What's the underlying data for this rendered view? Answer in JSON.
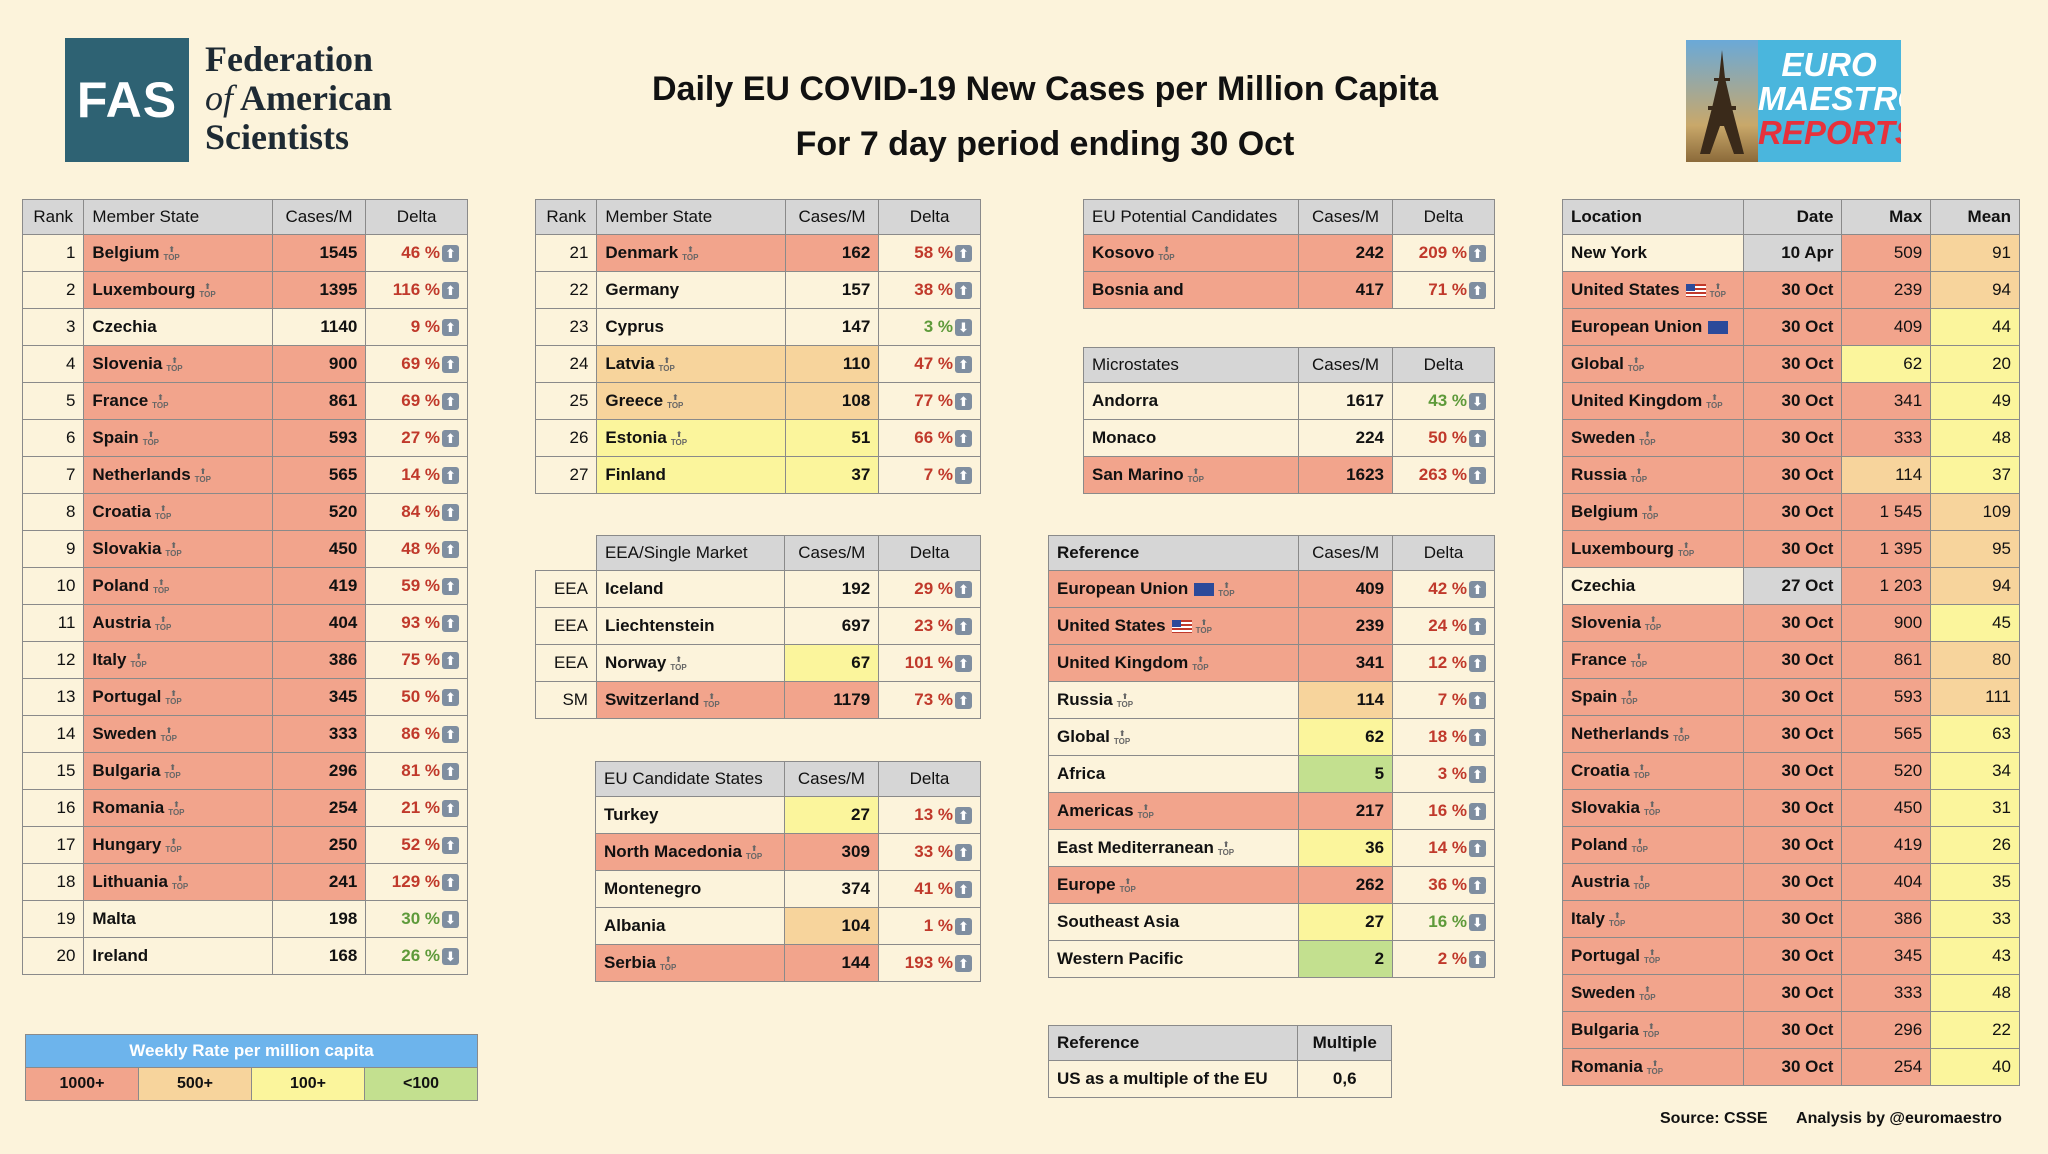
{
  "colors": {
    "c1000": "#f2a48c",
    "c500": "#f7d49c",
    "c100": "#fbf59c",
    "c0": "#c3e08f",
    "plain": "#fcf3db",
    "gray": "#d6d6d6"
  },
  "header": {
    "fas_abbr": "FAS",
    "fas_line1": "Federation",
    "fas_line2_of": "of",
    "fas_line2": "American",
    "fas_line3": "Scientists",
    "title1": "Daily EU COVID-19 New Cases per Million Capita",
    "title2": "For 7 day period ending 30 Oct",
    "euro_line1": "EURO",
    "euro_line2": "MAESTRO",
    "euro_line3": "REPORTS"
  },
  "chart_data": {
    "type": "table",
    "title": "Daily EU COVID-19 New Cases per Million Capita",
    "subtitle": "For 7 day period ending 30 Oct",
    "member_states": {
      "headers": [
        "Rank",
        "Member State",
        "Cases/M",
        "Delta"
      ],
      "rows_a": [
        {
          "rank": "1",
          "name": "Belgium",
          "cases": "1545",
          "delta": "46 %",
          "dir": "up",
          "top": true,
          "band": "c1000"
        },
        {
          "rank": "2",
          "name": "Luxembourg",
          "cases": "1395",
          "delta": "116 %",
          "dir": "up",
          "top": true,
          "band": "c1000"
        },
        {
          "rank": "3",
          "name": "Czechia",
          "cases": "1140",
          "delta": "9 %",
          "dir": "up",
          "top": false,
          "band": "plain"
        },
        {
          "rank": "4",
          "name": "Slovenia",
          "cases": "900",
          "delta": "69 %",
          "dir": "up",
          "top": true,
          "band": "c1000"
        },
        {
          "rank": "5",
          "name": "France",
          "cases": "861",
          "delta": "69 %",
          "dir": "up",
          "top": true,
          "band": "c1000"
        },
        {
          "rank": "6",
          "name": "Spain",
          "cases": "593",
          "delta": "27 %",
          "dir": "up",
          "top": true,
          "band": "c1000"
        },
        {
          "rank": "7",
          "name": "Netherlands",
          "cases": "565",
          "delta": "14 %",
          "dir": "up",
          "top": true,
          "band": "c1000"
        },
        {
          "rank": "8",
          "name": "Croatia",
          "cases": "520",
          "delta": "84 %",
          "dir": "up",
          "top": true,
          "band": "c1000"
        },
        {
          "rank": "9",
          "name": "Slovakia",
          "cases": "450",
          "delta": "48 %",
          "dir": "up",
          "top": true,
          "band": "c1000"
        },
        {
          "rank": "10",
          "name": "Poland",
          "cases": "419",
          "delta": "59 %",
          "dir": "up",
          "top": true,
          "band": "c1000"
        },
        {
          "rank": "11",
          "name": "Austria",
          "cases": "404",
          "delta": "93 %",
          "dir": "up",
          "top": true,
          "band": "c1000"
        },
        {
          "rank": "12",
          "name": "Italy",
          "cases": "386",
          "delta": "75 %",
          "dir": "up",
          "top": true,
          "band": "c1000"
        },
        {
          "rank": "13",
          "name": "Portugal",
          "cases": "345",
          "delta": "50 %",
          "dir": "up",
          "top": true,
          "band": "c1000"
        },
        {
          "rank": "14",
          "name": "Sweden",
          "cases": "333",
          "delta": "86 %",
          "dir": "up",
          "top": true,
          "band": "c1000"
        },
        {
          "rank": "15",
          "name": "Bulgaria",
          "cases": "296",
          "delta": "81 %",
          "dir": "up",
          "top": true,
          "band": "c1000"
        },
        {
          "rank": "16",
          "name": "Romania",
          "cases": "254",
          "delta": "21 %",
          "dir": "up",
          "top": true,
          "band": "c1000"
        },
        {
          "rank": "17",
          "name": "Hungary",
          "cases": "250",
          "delta": "52 %",
          "dir": "up",
          "top": true,
          "band": "c1000"
        },
        {
          "rank": "18",
          "name": "Lithuania",
          "cases": "241",
          "delta": "129 %",
          "dir": "up",
          "top": true,
          "band": "c1000"
        },
        {
          "rank": "19",
          "name": "Malta",
          "cases": "198",
          "delta": "30 %",
          "dir": "down",
          "top": false,
          "band": "plain"
        },
        {
          "rank": "20",
          "name": "Ireland",
          "cases": "168",
          "delta": "26 %",
          "dir": "down",
          "top": false,
          "band": "plain"
        }
      ],
      "rows_b": [
        {
          "rank": "21",
          "name": "Denmark",
          "cases": "162",
          "delta": "58 %",
          "dir": "up",
          "top": true,
          "band": "c1000"
        },
        {
          "rank": "22",
          "name": "Germany",
          "cases": "157",
          "delta": "38 %",
          "dir": "up",
          "top": false,
          "band": "plain"
        },
        {
          "rank": "23",
          "name": "Cyprus",
          "cases": "147",
          "delta": "3 %",
          "dir": "down",
          "top": false,
          "band": "plain"
        },
        {
          "rank": "24",
          "name": "Latvia",
          "cases": "110",
          "delta": "47 %",
          "dir": "up",
          "top": true,
          "band": "c500"
        },
        {
          "rank": "25",
          "name": "Greece",
          "cases": "108",
          "delta": "77 %",
          "dir": "up",
          "top": true,
          "band": "c500"
        },
        {
          "rank": "26",
          "name": "Estonia",
          "cases": "51",
          "delta": "66 %",
          "dir": "up",
          "top": true,
          "band": "c100"
        },
        {
          "rank": "27",
          "name": "Finland",
          "cases": "37",
          "delta": "7 %",
          "dir": "up",
          "top": false,
          "band": "c100"
        }
      ]
    },
    "eea": {
      "headers": [
        "EEA/Single Market",
        "Cases/M",
        "Delta"
      ],
      "rows": [
        {
          "tag": "EEA",
          "name": "Iceland",
          "cases": "192",
          "delta": "29 %",
          "dir": "up",
          "top": false,
          "band": "plain"
        },
        {
          "tag": "EEA",
          "name": "Liechtenstein",
          "cases": "697",
          "delta": "23 %",
          "dir": "up",
          "top": false,
          "band": "plain"
        },
        {
          "tag": "EEA",
          "name": "Norway",
          "cases": "67",
          "delta": "101 %",
          "dir": "up",
          "top": true,
          "band": "c100"
        },
        {
          "tag": "SM",
          "name": "Switzerland",
          "cases": "1179",
          "delta": "73 %",
          "dir": "up",
          "top": true,
          "band": "c1000"
        }
      ]
    },
    "candidates": {
      "headers": [
        "EU Candidate States",
        "Cases/M",
        "Delta"
      ],
      "rows": [
        {
          "name": "Turkey",
          "cases": "27",
          "delta": "13 %",
          "dir": "up",
          "top": false,
          "band": "c100"
        },
        {
          "name": "North Macedonia",
          "cases": "309",
          "delta": "33 %",
          "dir": "up",
          "top": true,
          "band": "c1000"
        },
        {
          "name": "Montenegro",
          "cases": "374",
          "delta": "41 %",
          "dir": "up",
          "top": false,
          "band": "plain"
        },
        {
          "name": "Albania",
          "cases": "104",
          "delta": "1 %",
          "dir": "up",
          "top": false,
          "band": "c500"
        },
        {
          "name": "Serbia",
          "cases": "144",
          "delta": "193 %",
          "dir": "up",
          "top": true,
          "band": "c1000"
        }
      ]
    },
    "potential": {
      "headers": [
        "EU Potential Candidates",
        "Cases/M",
        "Delta"
      ],
      "rows": [
        {
          "name": "Kosovo",
          "cases": "242",
          "delta": "209 %",
          "dir": "up",
          "top": true,
          "band": "c1000"
        },
        {
          "name": "Bosnia and",
          "cases": "417",
          "delta": "71 %",
          "dir": "up",
          "top": false,
          "band": "c1000"
        }
      ]
    },
    "microstates": {
      "headers": [
        "Microstates",
        "Cases/M",
        "Delta"
      ],
      "rows": [
        {
          "name": "Andorra",
          "cases": "1617",
          "delta": "43 %",
          "dir": "down",
          "top": false,
          "band": "plain"
        },
        {
          "name": "Monaco",
          "cases": "224",
          "delta": "50 %",
          "dir": "up",
          "top": false,
          "band": "plain"
        },
        {
          "name": "San Marino",
          "cases": "1623",
          "delta": "263 %",
          "dir": "up",
          "top": true,
          "band": "c1000"
        }
      ]
    },
    "reference": {
      "headers": [
        "Reference",
        "Cases/M",
        "Delta"
      ],
      "rows": [
        {
          "name": "European Union",
          "flag": "eu",
          "cases": "409",
          "delta": "42 %",
          "dir": "up",
          "top": true,
          "band": "c1000"
        },
        {
          "name": "United States",
          "flag": "us",
          "cases": "239",
          "delta": "24 %",
          "dir": "up",
          "top": true,
          "band": "c1000"
        },
        {
          "name": "United Kingdom",
          "cases": "341",
          "delta": "12 %",
          "dir": "up",
          "top": true,
          "band": "c1000"
        },
        {
          "name": "Russia",
          "cases": "114",
          "delta": "7 %",
          "dir": "up",
          "top": true,
          "band": "c500"
        },
        {
          "name": "Global",
          "cases": "62",
          "delta": "18 %",
          "dir": "up",
          "top": true,
          "band": "c100"
        },
        {
          "name": "Africa",
          "cases": "5",
          "delta": "3 %",
          "dir": "up",
          "top": false,
          "band": "c0"
        },
        {
          "name": "Americas",
          "cases": "217",
          "delta": "16 %",
          "dir": "up",
          "top": true,
          "band": "c1000"
        },
        {
          "name": "East Mediterranean",
          "cases": "36",
          "delta": "14 %",
          "dir": "up",
          "top": true,
          "band": "c100"
        },
        {
          "name": "Europe",
          "cases": "262",
          "delta": "36 %",
          "dir": "up",
          "top": true,
          "band": "c1000"
        },
        {
          "name": "Southeast Asia",
          "cases": "27",
          "delta": "16 %",
          "dir": "down",
          "top": false,
          "band": "c100"
        },
        {
          "name": "Western Pacific",
          "cases": "2",
          "delta": "2 %",
          "dir": "up",
          "top": false,
          "band": "c0"
        }
      ]
    },
    "multiple": {
      "headers": [
        "Reference",
        "Multiple"
      ],
      "rows": [
        {
          "name": "US as a multiple of the EU",
          "value": "0,6"
        }
      ]
    },
    "peaks": {
      "headers": [
        "Location",
        "Date",
        "Max",
        "Mean"
      ],
      "rows": [
        {
          "name": "New York",
          "date": "10 Apr",
          "max": "509",
          "mean": "91",
          "top": false,
          "nameBand": "plain",
          "dateBand": "gray",
          "meanBand": "c500"
        },
        {
          "name": "United States",
          "flag": "us",
          "date": "30 Oct",
          "max": "239",
          "mean": "94",
          "top": true,
          "nameBand": "c1000",
          "meanBand": "c500"
        },
        {
          "name": "European Union",
          "flag": "eu",
          "date": "30 Oct",
          "max": "409",
          "mean": "44",
          "top": false,
          "nameBand": "c1000",
          "meanBand": "c100"
        },
        {
          "name": "Global",
          "date": "30 Oct",
          "max": "62",
          "mean": "20",
          "top": true,
          "nameBand": "c1000",
          "maxBand": "c100",
          "meanBand": "c100"
        },
        {
          "name": "United Kingdom",
          "date": "30 Oct",
          "max": "341",
          "mean": "49",
          "top": true,
          "nameBand": "c1000",
          "meanBand": "c100"
        },
        {
          "name": "Sweden",
          "date": "30 Oct",
          "max": "333",
          "mean": "48",
          "top": true,
          "nameBand": "c1000",
          "meanBand": "c100"
        },
        {
          "name": "Russia",
          "date": "30 Oct",
          "max": "114",
          "mean": "37",
          "top": true,
          "nameBand": "c1000",
          "maxBand": "c500",
          "meanBand": "c100"
        },
        {
          "name": "Belgium",
          "date": "30 Oct",
          "max": "1 545",
          "mean": "109",
          "top": true,
          "nameBand": "c1000",
          "meanBand": "c500"
        },
        {
          "name": "Luxembourg",
          "date": "30 Oct",
          "max": "1 395",
          "mean": "95",
          "top": true,
          "nameBand": "c1000",
          "meanBand": "c500"
        },
        {
          "name": "Czechia",
          "date": "27 Oct",
          "max": "1 203",
          "mean": "94",
          "top": false,
          "nameBand": "plain",
          "dateBand": "gray",
          "meanBand": "c500"
        },
        {
          "name": "Slovenia",
          "date": "30 Oct",
          "max": "900",
          "mean": "45",
          "top": true,
          "nameBand": "c1000",
          "meanBand": "c100"
        },
        {
          "name": "France",
          "date": "30 Oct",
          "max": "861",
          "mean": "80",
          "top": true,
          "nameBand": "c1000",
          "meanBand": "c500"
        },
        {
          "name": "Spain",
          "date": "30 Oct",
          "max": "593",
          "mean": "111",
          "top": true,
          "nameBand": "c1000",
          "meanBand": "c500"
        },
        {
          "name": "Netherlands",
          "date": "30 Oct",
          "max": "565",
          "mean": "63",
          "top": true,
          "nameBand": "c1000",
          "meanBand": "c100"
        },
        {
          "name": "Croatia",
          "date": "30 Oct",
          "max": "520",
          "mean": "34",
          "top": true,
          "nameBand": "c1000",
          "meanBand": "c100"
        },
        {
          "name": "Slovakia",
          "date": "30 Oct",
          "max": "450",
          "mean": "31",
          "top": true,
          "nameBand": "c1000",
          "meanBand": "c100"
        },
        {
          "name": "Poland",
          "date": "30 Oct",
          "max": "419",
          "mean": "26",
          "top": true,
          "nameBand": "c1000",
          "meanBand": "c100"
        },
        {
          "name": "Austria",
          "date": "30 Oct",
          "max": "404",
          "mean": "35",
          "top": true,
          "nameBand": "c1000",
          "meanBand": "c100"
        },
        {
          "name": "Italy",
          "date": "30 Oct",
          "max": "386",
          "mean": "33",
          "top": true,
          "nameBand": "c1000",
          "meanBand": "c100"
        },
        {
          "name": "Portugal",
          "date": "30 Oct",
          "max": "345",
          "mean": "43",
          "top": true,
          "nameBand": "c1000",
          "meanBand": "c100"
        },
        {
          "name": "Sweden",
          "date": "30 Oct",
          "max": "333",
          "mean": "48",
          "top": true,
          "nameBand": "c1000",
          "meanBand": "c100"
        },
        {
          "name": "Bulgaria",
          "date": "30 Oct",
          "max": "296",
          "mean": "22",
          "top": true,
          "nameBand": "c1000",
          "meanBand": "c100"
        },
        {
          "name": "Romania",
          "date": "30 Oct",
          "max": "254",
          "mean": "40",
          "top": true,
          "nameBand": "c1000",
          "meanBand": "c100"
        }
      ]
    },
    "legend": {
      "title": "Weekly Rate per million capita",
      "items": [
        {
          "label": "1000+",
          "band": "c1000"
        },
        {
          "label": "500+",
          "band": "c500"
        },
        {
          "label": "100+",
          "band": "c100"
        },
        {
          "label": "<100",
          "band": "c0"
        }
      ]
    }
  },
  "footer": {
    "source": "Source: CSSE",
    "analysis": "Analysis by @euromaestro"
  },
  "top_label": "TOP"
}
